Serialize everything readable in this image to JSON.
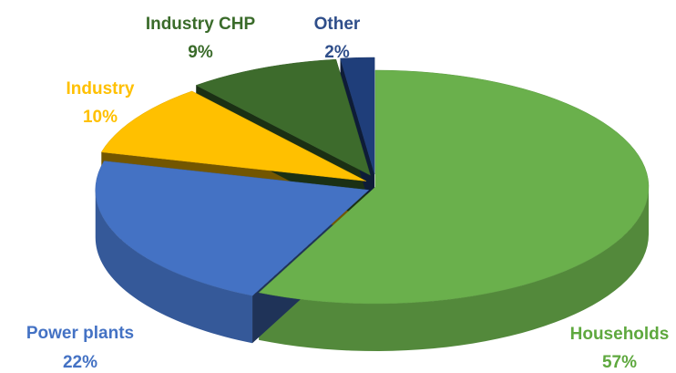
{
  "chart_data": {
    "type": "pie",
    "categories": [
      "Households",
      "Power plants",
      "Industry",
      "Industry CHP",
      "Other"
    ],
    "values": [
      57,
      22,
      10,
      9,
      2
    ],
    "value_labels": [
      "57%",
      "22%",
      "10%",
      "9%",
      "2%"
    ],
    "colors": [
      "#6ab04c",
      "#4472c4",
      "#ffc000",
      "#3d6b2c",
      "#1f3e7a"
    ],
    "label_colors": [
      "#5ea83e",
      "#4472c4",
      "#ffc000",
      "#3a6b2a",
      "#2f4e8a"
    ]
  }
}
